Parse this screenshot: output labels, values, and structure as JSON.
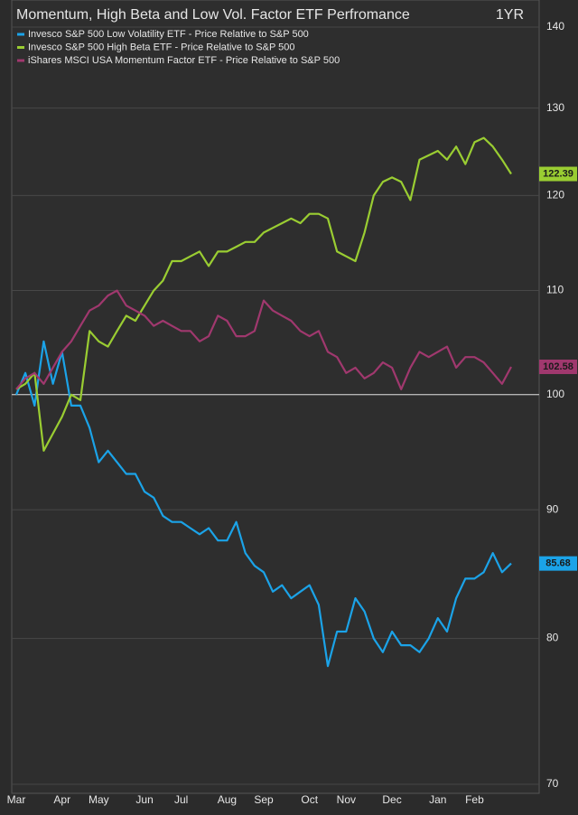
{
  "chart_data": {
    "type": "line",
    "title": "Momentum, High Beta and Low Vol. Factor ETF Perfromance",
    "period": "1YR",
    "log_scale": true,
    "grid": true,
    "reference_line": 100,
    "legend": "upper left",
    "ylim": [
      70,
      140
    ],
    "yticks": [
      70,
      80,
      90,
      100,
      110,
      120,
      130,
      140
    ],
    "x": [
      "Mar",
      null,
      null,
      null,
      null,
      "Apr",
      null,
      null,
      null,
      "May",
      null,
      null,
      null,
      null,
      "Jun",
      null,
      null,
      null,
      "Jul",
      null,
      null,
      null,
      null,
      "Aug",
      null,
      null,
      null,
      "Sep",
      null,
      null,
      null,
      null,
      "Oct",
      null,
      null,
      null,
      "Nov",
      null,
      null,
      null,
      null,
      "Dec",
      null,
      null,
      null,
      null,
      "Jan",
      null,
      null,
      null,
      "Feb",
      null,
      null,
      null,
      null
    ],
    "series": [
      {
        "name": "Invesco S&P 500 Low Volatility ETF - Price Relative to S&P 500",
        "color": "#1ba3e8",
        "values": [
          100,
          102,
          99,
          105,
          101,
          104,
          99,
          99,
          97,
          94,
          95,
          94,
          93,
          93,
          91.5,
          91,
          89.5,
          89,
          89,
          88.5,
          88,
          88.5,
          87.5,
          87.5,
          89,
          86.5,
          85.5,
          85,
          83.5,
          84,
          83,
          83.5,
          84,
          82.5,
          78,
          80.5,
          80.5,
          83,
          82,
          80,
          79,
          80.5,
          79.5,
          79.5,
          79,
          80,
          81.5,
          80.5,
          83,
          84.5,
          84.5,
          85,
          86.5,
          85,
          85.68
        ]
      },
      {
        "name": "Invesco S&P 500 High Beta ETF - Price Relative to S&P 500",
        "color": "#9acd32",
        "values": [
          100.5,
          101,
          102,
          95,
          96.5,
          98,
          100,
          99.5,
          106,
          105,
          104.5,
          106,
          107.5,
          107,
          108.5,
          110,
          111,
          113,
          113,
          113.5,
          114,
          112.5,
          114,
          114,
          114.5,
          115,
          115,
          116,
          116.5,
          117,
          117.5,
          117,
          118,
          118,
          117.5,
          114,
          113.5,
          113,
          116,
          120,
          121.5,
          122,
          121.5,
          119.5,
          124,
          124.5,
          125,
          124,
          125.5,
          123.5,
          126,
          126.5,
          125.5,
          124,
          122.39
        ]
      },
      {
        "name": "iShares MSCI USA Momentum Factor ETF - Price Relative to S&P 500",
        "color": "#a0386e",
        "values": [
          100.5,
          101.5,
          102,
          101,
          102.5,
          104,
          105,
          106.5,
          108,
          108.5,
          109.5,
          110,
          108.5,
          108,
          107.5,
          106.5,
          107,
          106.5,
          106,
          106,
          105,
          105.5,
          107.5,
          107,
          105.5,
          105.5,
          106,
          109,
          108,
          107.5,
          107,
          106,
          105.5,
          106,
          104,
          103.5,
          102,
          102.5,
          101.5,
          102,
          103,
          102.5,
          100.5,
          102.5,
          104,
          103.5,
          104,
          104.5,
          102.5,
          103.5,
          103.5,
          103,
          102,
          101,
          102.58
        ]
      }
    ]
  }
}
